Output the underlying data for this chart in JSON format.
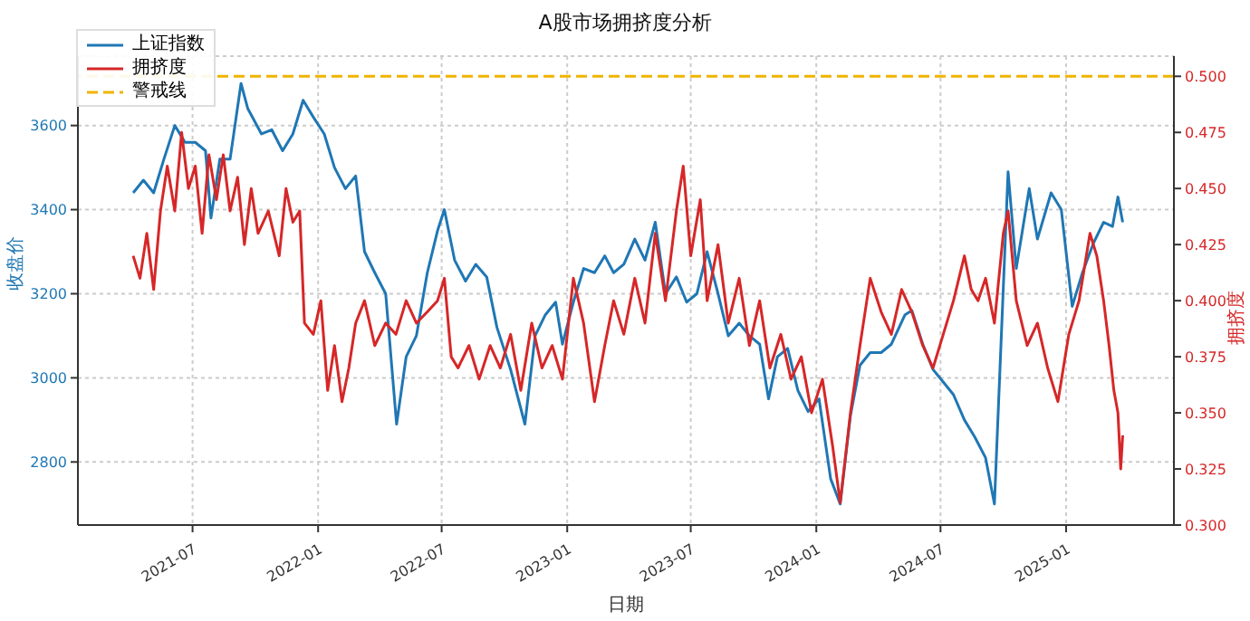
{
  "chart_data": {
    "type": "line",
    "title": "A股市场拥挤度分析",
    "xlabel": "日期",
    "ylabel": "收盘价",
    "y2label": "拥挤度",
    "xlim": [
      "2021-01-14",
      "2025-06-08"
    ],
    "xticks": [
      {
        "value": "2021-07-01",
        "label": "2021-07"
      },
      {
        "value": "2022-01-01",
        "label": "2022-01"
      },
      {
        "value": "2022-07-01",
        "label": "2022-07"
      },
      {
        "value": "2023-01-01",
        "label": "2023-01"
      },
      {
        "value": "2023-07-01",
        "label": "2023-07"
      },
      {
        "value": "2024-01-01",
        "label": "2024-01"
      },
      {
        "value": "2024-07-01",
        "label": "2024-07"
      },
      {
        "value": "2025-01-01",
        "label": "2025-01"
      }
    ],
    "ylim": [
      2650,
      3765
    ],
    "yticks": [
      2800,
      3000,
      3200,
      3400,
      3600
    ],
    "y2lim": [
      0.3,
      0.509
    ],
    "y2ticks": [
      {
        "value": 0.3,
        "label": "0.300"
      },
      {
        "value": 0.325,
        "label": "0.325"
      },
      {
        "value": 0.35,
        "label": "0.350"
      },
      {
        "value": 0.375,
        "label": "0.375"
      },
      {
        "value": 0.4,
        "label": "0.400"
      },
      {
        "value": 0.425,
        "label": "0.425"
      },
      {
        "value": 0.45,
        "label": "0.450"
      },
      {
        "value": 0.475,
        "label": "0.475"
      },
      {
        "value": 0.5,
        "label": "0.500"
      }
    ],
    "grid": true,
    "legend": "top left",
    "line_style": "solid",
    "ref_lines": [
      {
        "axis": "y2",
        "value": 0.5,
        "label": "警戒线",
        "color": "#f0b400",
        "line_style": "dashed"
      }
    ],
    "series": [
      {
        "name": "上证指数",
        "color": "#1f77b4",
        "x": [
          "2021-04-05",
          "2021-04-20",
          "2021-05-05",
          "2021-05-20",
          "2021-06-05",
          "2021-06-20",
          "2021-07-05",
          "2021-07-20",
          "2021-07-28",
          "2021-08-10",
          "2021-08-25",
          "2021-09-10",
          "2021-09-20",
          "2021-10-10",
          "2021-10-25",
          "2021-11-10",
          "2021-11-25",
          "2021-12-10",
          "2021-12-25",
          "2022-01-10",
          "2022-01-25",
          "2022-02-10",
          "2022-02-25",
          "2022-03-10",
          "2022-03-25",
          "2022-04-10",
          "2022-04-26",
          "2022-05-10",
          "2022-05-25",
          "2022-06-10",
          "2022-06-25",
          "2022-07-05",
          "2022-07-20",
          "2022-08-05",
          "2022-08-20",
          "2022-09-05",
          "2022-09-20",
          "2022-10-10",
          "2022-10-31",
          "2022-11-15",
          "2022-11-30",
          "2022-12-15",
          "2022-12-25",
          "2023-01-10",
          "2023-01-25",
          "2023-02-10",
          "2023-02-25",
          "2023-03-10",
          "2023-03-25",
          "2023-04-10",
          "2023-04-25",
          "2023-05-10",
          "2023-05-25",
          "2023-06-10",
          "2023-06-25",
          "2023-07-10",
          "2023-07-25",
          "2023-08-10",
          "2023-08-25",
          "2023-09-10",
          "2023-09-25",
          "2023-10-10",
          "2023-10-23",
          "2023-11-05",
          "2023-11-20",
          "2023-12-05",
          "2023-12-20",
          "2024-01-05",
          "2024-01-22",
          "2024-02-05",
          "2024-02-20",
          "2024-03-05",
          "2024-03-20",
          "2024-04-05",
          "2024-04-20",
          "2024-05-10",
          "2024-05-20",
          "2024-06-05",
          "2024-06-20",
          "2024-07-05",
          "2024-07-20",
          "2024-08-05",
          "2024-08-20",
          "2024-09-05",
          "2024-09-18",
          "2024-10-08",
          "2024-10-20",
          "2024-11-08",
          "2024-11-20",
          "2024-12-10",
          "2024-12-25",
          "2025-01-10",
          "2025-01-25",
          "2025-02-10",
          "2025-02-25",
          "2025-03-10",
          "2025-03-18",
          "2025-03-25"
        ],
        "values": [
          3440,
          3470,
          3440,
          3520,
          3600,
          3560,
          3560,
          3540,
          3380,
          3520,
          3520,
          3700,
          3640,
          3580,
          3590,
          3540,
          3580,
          3660,
          3620,
          3580,
          3500,
          3450,
          3480,
          3300,
          3250,
          3200,
          2890,
          3050,
          3100,
          3250,
          3350,
          3400,
          3280,
          3230,
          3270,
          3240,
          3120,
          3020,
          2890,
          3100,
          3150,
          3180,
          3080,
          3180,
          3260,
          3250,
          3290,
          3250,
          3270,
          3330,
          3280,
          3370,
          3200,
          3240,
          3180,
          3200,
          3300,
          3200,
          3100,
          3130,
          3100,
          3080,
          2950,
          3050,
          3070,
          2970,
          2920,
          2950,
          2760,
          2700,
          2910,
          3030,
          3060,
          3060,
          3080,
          3150,
          3160,
          3080,
          3020,
          2990,
          2960,
          2900,
          2860,
          2810,
          2700,
          3490,
          3260,
          3450,
          3330,
          3440,
          3400,
          3170,
          3250,
          3320,
          3370,
          3360,
          3430,
          3370
        ]
      },
      {
        "name": "拥挤度",
        "color": "#d62728",
        "axis": "y2",
        "x": [
          "2021-04-05",
          "2021-04-15",
          "2021-04-25",
          "2021-05-05",
          "2021-05-15",
          "2021-05-25",
          "2021-06-05",
          "2021-06-15",
          "2021-06-25",
          "2021-07-05",
          "2021-07-15",
          "2021-07-25",
          "2021-08-05",
          "2021-08-15",
          "2021-08-25",
          "2021-09-05",
          "2021-09-15",
          "2021-09-25",
          "2021-10-05",
          "2021-10-20",
          "2021-11-05",
          "2021-11-15",
          "2021-11-25",
          "2021-12-05",
          "2021-12-12",
          "2021-12-25",
          "2022-01-05",
          "2022-01-15",
          "2022-01-25",
          "2022-02-05",
          "2022-02-15",
          "2022-02-25",
          "2022-03-10",
          "2022-03-25",
          "2022-04-10",
          "2022-04-25",
          "2022-05-10",
          "2022-05-25",
          "2022-06-10",
          "2022-06-25",
          "2022-07-05",
          "2022-07-15",
          "2022-07-25",
          "2022-08-10",
          "2022-08-25",
          "2022-09-10",
          "2022-09-25",
          "2022-10-10",
          "2022-10-25",
          "2022-11-10",
          "2022-11-25",
          "2022-12-10",
          "2022-12-25",
          "2023-01-10",
          "2023-01-25",
          "2023-02-10",
          "2023-02-25",
          "2023-03-10",
          "2023-03-25",
          "2023-04-10",
          "2023-04-25",
          "2023-05-10",
          "2023-05-25",
          "2023-06-10",
          "2023-06-20",
          "2023-07-01",
          "2023-07-15",
          "2023-07-25",
          "2023-08-10",
          "2023-08-25",
          "2023-09-10",
          "2023-09-25",
          "2023-10-10",
          "2023-10-25",
          "2023-11-10",
          "2023-11-25",
          "2023-12-10",
          "2023-12-25",
          "2024-01-10",
          "2024-01-25",
          "2024-02-05",
          "2024-02-20",
          "2024-03-05",
          "2024-03-20",
          "2024-04-05",
          "2024-04-20",
          "2024-05-05",
          "2024-05-20",
          "2024-06-05",
          "2024-06-20",
          "2024-07-05",
          "2024-07-20",
          "2024-08-05",
          "2024-08-15",
          "2024-08-25",
          "2024-09-05",
          "2024-09-18",
          "2024-10-01",
          "2024-10-08",
          "2024-10-20",
          "2024-11-05",
          "2024-11-20",
          "2024-12-05",
          "2024-12-20",
          "2025-01-05",
          "2025-01-20",
          "2025-02-05",
          "2025-02-15",
          "2025-02-25",
          "2025-03-05",
          "2025-03-12",
          "2025-03-18",
          "2025-03-22",
          "2025-03-25"
        ],
        "values": [
          0.42,
          0.41,
          0.43,
          0.405,
          0.44,
          0.46,
          0.44,
          0.475,
          0.45,
          0.46,
          0.43,
          0.465,
          0.445,
          0.465,
          0.44,
          0.455,
          0.425,
          0.45,
          0.43,
          0.44,
          0.42,
          0.45,
          0.435,
          0.44,
          0.39,
          0.385,
          0.4,
          0.36,
          0.38,
          0.355,
          0.37,
          0.39,
          0.4,
          0.38,
          0.39,
          0.385,
          0.4,
          0.39,
          0.395,
          0.4,
          0.41,
          0.375,
          0.37,
          0.38,
          0.365,
          0.38,
          0.37,
          0.385,
          0.36,
          0.39,
          0.37,
          0.38,
          0.365,
          0.41,
          0.39,
          0.355,
          0.38,
          0.4,
          0.385,
          0.41,
          0.39,
          0.43,
          0.4,
          0.44,
          0.46,
          0.42,
          0.445,
          0.4,
          0.425,
          0.39,
          0.41,
          0.38,
          0.4,
          0.37,
          0.385,
          0.365,
          0.375,
          0.35,
          0.365,
          0.335,
          0.31,
          0.35,
          0.38,
          0.41,
          0.395,
          0.385,
          0.405,
          0.395,
          0.38,
          0.37,
          0.385,
          0.4,
          0.42,
          0.405,
          0.4,
          0.41,
          0.39,
          0.43,
          0.44,
          0.4,
          0.38,
          0.39,
          0.37,
          0.355,
          0.385,
          0.4,
          0.43,
          0.42,
          0.4,
          0.38,
          0.36,
          0.35,
          0.325,
          0.34
        ]
      }
    ]
  }
}
